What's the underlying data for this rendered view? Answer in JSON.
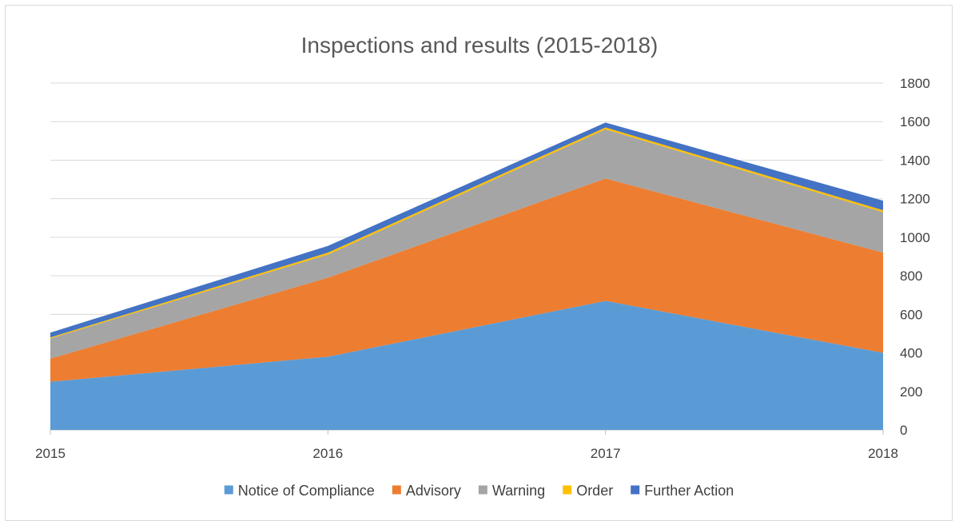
{
  "chart_data": {
    "type": "area",
    "stacked": true,
    "title": "Inspections and results (2015-2018)",
    "categories": [
      "2015",
      "2016",
      "2017",
      "2018"
    ],
    "series": [
      {
        "name": "Notice of Compliance",
        "color": "#5b9bd5",
        "values": [
          250,
          380,
          670,
          400
        ]
      },
      {
        "name": "Advisory",
        "color": "#ed7d31",
        "values": [
          120,
          410,
          635,
          520
        ]
      },
      {
        "name": "Warning",
        "color": "#a5a5a5",
        "values": [
          105,
          120,
          255,
          210
        ]
      },
      {
        "name": "Order",
        "color": "#ffc000",
        "values": [
          5,
          10,
          10,
          10
        ]
      },
      {
        "name": "Further Action",
        "color": "#4472c4",
        "values": [
          25,
          35,
          25,
          50
        ]
      }
    ],
    "ylim": [
      0,
      1800
    ],
    "yticks": [
      "0",
      "200",
      "400",
      "600",
      "800",
      "1000",
      "1200",
      "1400",
      "1600",
      "1800"
    ],
    "y_axis_side": "right",
    "grid": true,
    "legend_position": "bottom"
  }
}
